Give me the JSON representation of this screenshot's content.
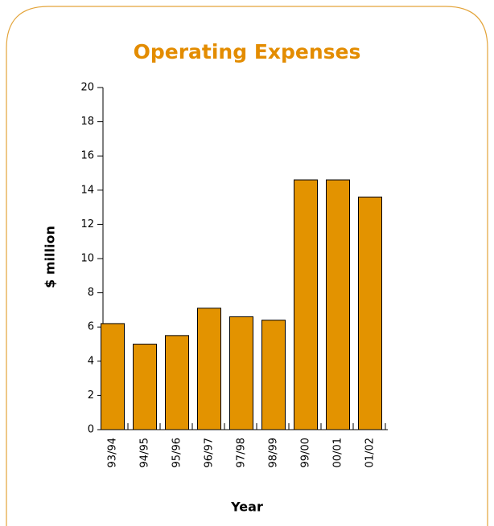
{
  "chart_data": {
    "type": "bar",
    "title": "Operating Expenses",
    "x_label": "Year",
    "y_label": "$ million",
    "categories": [
      "93/94",
      "94/95",
      "95/96",
      "96/97",
      "97/98",
      "98/99",
      "99/00",
      "00/01",
      "01/02"
    ],
    "values": [
      6.2,
      5.0,
      5.5,
      7.1,
      6.6,
      6.4,
      14.6,
      14.6,
      13.6
    ],
    "color": "#e39300",
    "ylim": [
      0,
      20
    ],
    "yticks": [
      0,
      2,
      4,
      6,
      8,
      10,
      12,
      14,
      16,
      18,
      20
    ],
    "grid": false
  }
}
